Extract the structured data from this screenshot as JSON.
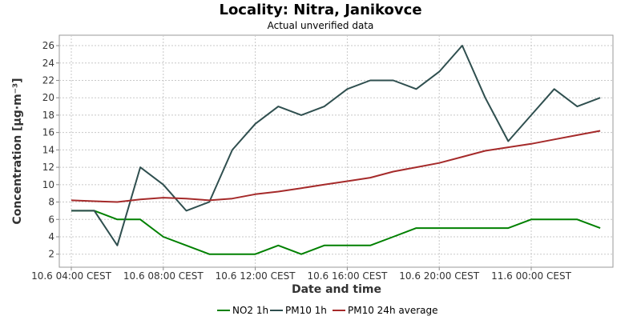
{
  "chart_data": {
    "type": "line",
    "title": "Locality: Nitra, Janikovce",
    "subtitle": "Actual unverified data",
    "xlabel": "Date and time",
    "ylabel": "Concentration [µg·m⁻³]",
    "ylim": [
      0.5,
      27.2
    ],
    "yticks": [
      2,
      4,
      6,
      8,
      10,
      12,
      14,
      16,
      18,
      20,
      22,
      24,
      26
    ],
    "x_tick_labels": [
      "10.6 04:00 CEST",
      "10.6 08:00 CEST",
      "10.6 12:00 CEST",
      "10.6 16:00 CEST",
      "10.6 20:00 CEST",
      "11.6 00:00 CEST"
    ],
    "x_hours": [
      4,
      5,
      6,
      7,
      8,
      9,
      10,
      11,
      12,
      13,
      14,
      15,
      16,
      17,
      18,
      19,
      20,
      21,
      22,
      23,
      24,
      25,
      26,
      27
    ],
    "grid": true,
    "legend_position": "bottom",
    "series": [
      {
        "name": "NO2 1h",
        "color": "#008000",
        "values": [
          7,
          7,
          6,
          6,
          4,
          3,
          2,
          2,
          2,
          3,
          2,
          3,
          3,
          3,
          4,
          5,
          5,
          5,
          5,
          5,
          6,
          6,
          6,
          5
        ]
      },
      {
        "name": "PM10 1h",
        "color": "#2f4f4f",
        "values": [
          7,
          7,
          3,
          12,
          10,
          7,
          8,
          14,
          17,
          19,
          18,
          19,
          21,
          22,
          22,
          21,
          23,
          26,
          20,
          15,
          18,
          21,
          19,
          20
        ]
      },
      {
        "name": "PM10 24h average",
        "color": "#a52a2a",
        "values": [
          8.2,
          8.1,
          8.0,
          8.3,
          8.5,
          8.4,
          8.2,
          8.4,
          8.9,
          9.2,
          9.6,
          10.0,
          10.4,
          10.8,
          11.5,
          12.0,
          12.5,
          13.2,
          13.9,
          14.3,
          14.7,
          15.2,
          15.7,
          16.2
        ]
      }
    ]
  }
}
